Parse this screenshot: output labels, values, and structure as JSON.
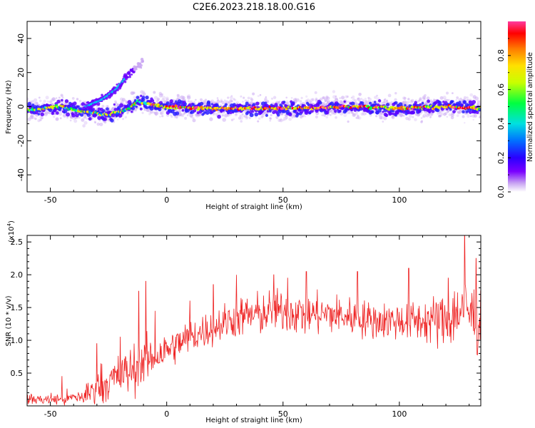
{
  "title": "C2E6.2023.218.18.00.G16",
  "chart_data": [
    {
      "type": "heatmap",
      "name": "spectrogram",
      "xlabel": "Height of straight line (km)",
      "ylabel": "Frequency (Hz)",
      "xlim": [
        -60,
        135
      ],
      "ylim": [
        -50,
        50
      ],
      "xticks": [
        -50,
        0,
        50,
        100
      ],
      "yticks": [
        -40,
        -20,
        0,
        20,
        40
      ],
      "colorbar": {
        "label": "Normalized spectral amplitude",
        "range": [
          0.0,
          1.0
        ],
        "ticks": [
          0.0,
          0.2,
          0.4,
          0.6,
          0.8
        ],
        "colors": [
          "#ffffff",
          "#c9a6f2",
          "#7a00ff",
          "#2a00ff",
          "#0070ff",
          "#00e0e0",
          "#00ff40",
          "#c8ff00",
          "#ffe000",
          "#ff7a00",
          "#ff0000",
          "#ff3aa0"
        ]
      },
      "ridges": [
        {
          "label": "main",
          "points": [
            [
              -60,
              -2
            ],
            [
              -45,
              0
            ],
            [
              -35,
              -3
            ],
            [
              -25,
              -5
            ],
            [
              -18,
              -2
            ],
            [
              -12,
              3
            ],
            [
              -6,
              1
            ],
            [
              0,
              0
            ],
            [
              20,
              -1
            ],
            [
              50,
              -1
            ],
            [
              80,
              0
            ],
            [
              100,
              -1
            ],
            [
              120,
              0
            ],
            [
              135,
              -1
            ]
          ]
        },
        {
          "label": "branch",
          "points": [
            [
              -35,
              0
            ],
            [
              -28,
              4
            ],
            [
              -22,
              10
            ],
            [
              -17,
              18
            ],
            [
              -13,
              23
            ],
            [
              -10,
              26
            ]
          ]
        }
      ]
    },
    {
      "type": "line",
      "name": "snr",
      "xlabel": "Height of straight line (km)",
      "ylabel": "SNR (10 * v/v)",
      "yscale_note": "(x10",
      "yscale_exp": "4",
      "xlim": [
        -60,
        135
      ],
      "ylim": [
        0,
        2.6
      ],
      "xticks": [
        -50,
        0,
        50,
        100
      ],
      "yticks": [
        0.5,
        1.0,
        1.5,
        2.0,
        2.5
      ],
      "color": "#ee2222",
      "trend": {
        "x": [
          -60,
          -45,
          -35,
          -30,
          -20,
          -10,
          0,
          10,
          20,
          30,
          40,
          50,
          60,
          70,
          80,
          90,
          100,
          110,
          120,
          128,
          135
        ],
        "y": [
          0.1,
          0.1,
          0.15,
          0.3,
          0.45,
          0.65,
          0.85,
          1.05,
          1.2,
          1.35,
          1.4,
          1.45,
          1.4,
          1.4,
          1.35,
          1.3,
          1.3,
          1.3,
          1.3,
          1.5,
          1.25
        ]
      },
      "noise_amplitude": [
        [
          -60,
          0.08
        ],
        [
          -40,
          0.1
        ],
        [
          -30,
          0.25
        ],
        [
          -15,
          0.35
        ],
        [
          0,
          0.25
        ],
        [
          20,
          0.25
        ],
        [
          40,
          0.3
        ],
        [
          60,
          0.3
        ],
        [
          90,
          0.25
        ],
        [
          110,
          0.3
        ],
        [
          125,
          0.45
        ],
        [
          135,
          0.5
        ]
      ],
      "peaks": [
        [
          -45,
          0.45
        ],
        [
          -30,
          0.95
        ],
        [
          -20,
          1.05
        ],
        [
          -12,
          1.75
        ],
        [
          -9,
          1.9
        ],
        [
          -5,
          1.45
        ],
        [
          10,
          1.6
        ],
        [
          20,
          1.85
        ],
        [
          30,
          2.0
        ],
        [
          46,
          2.0
        ],
        [
          52,
          1.95
        ],
        [
          60,
          2.05
        ],
        [
          82,
          2.05
        ],
        [
          104,
          2.1
        ],
        [
          121,
          1.95
        ],
        [
          128,
          2.6
        ],
        [
          133,
          2.25
        ]
      ]
    }
  ]
}
